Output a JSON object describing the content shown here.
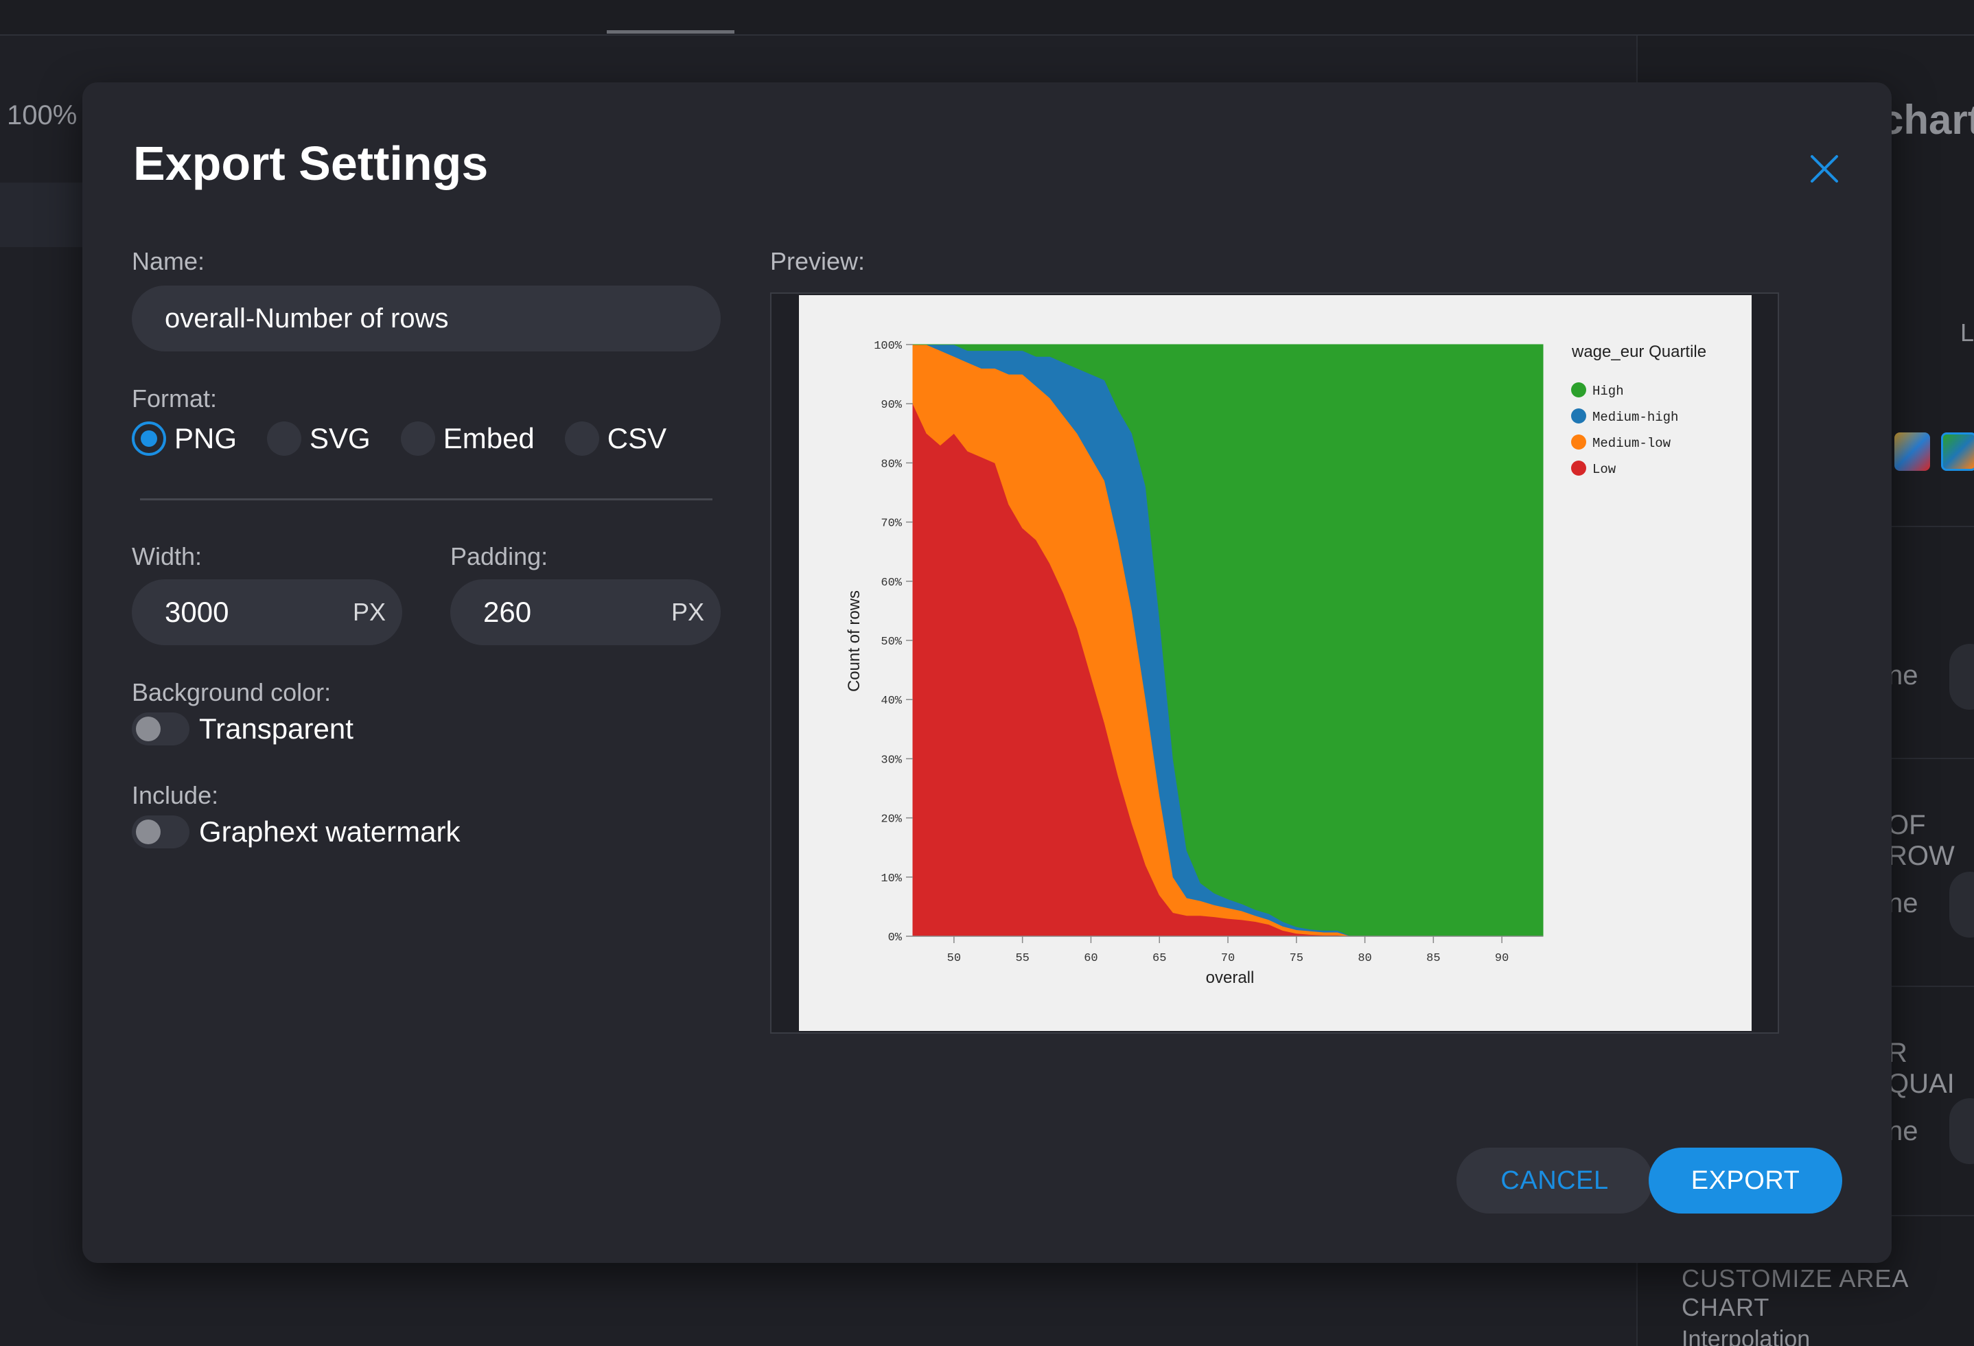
{
  "background": {
    "zoom_label": "100%",
    "right_title": "chart",
    "right_l": "L",
    "right_row_labels": [
      "ne",
      "OF ROW",
      "ne",
      "R QUAI",
      "ne"
    ],
    "customize_label": "CUSTOMIZE AREA CHART",
    "interpolation_label": "Interpolation"
  },
  "modal": {
    "title": "Export Settings",
    "close_icon": "close-icon",
    "name_label": "Name:",
    "name_value": "overall-Number of rows",
    "format_label": "Format:",
    "formats": [
      {
        "label": "PNG",
        "selected": true
      },
      {
        "label": "SVG",
        "selected": false
      },
      {
        "label": "Embed",
        "selected": false
      },
      {
        "label": "CSV",
        "selected": false
      }
    ],
    "width_label": "Width:",
    "width_value": "3000",
    "width_unit": "PX",
    "padding_label": "Padding:",
    "padding_value": "260",
    "padding_unit": "PX",
    "background_label": "Background color:",
    "transparent_label": "Transparent",
    "transparent_on": false,
    "include_label": "Include:",
    "watermark_label": "Graphext watermark",
    "watermark_on": false,
    "preview_label": "Preview:",
    "cancel_label": "CANCEL",
    "export_label": "EXPORT"
  },
  "colors": {
    "accent": "#1a8fe3",
    "high": "#2ca02c",
    "medium_high": "#1f77b4",
    "medium_low": "#ff7f0e",
    "low": "#d62728"
  },
  "chart_data": {
    "type": "area",
    "stacked": "normalized",
    "xlabel": "overall",
    "ylabel": "Count of rows",
    "legend_title": "wage_eur Quartile",
    "legend_position": "right",
    "x_ticks": [
      50,
      55,
      60,
      65,
      70,
      75,
      80,
      85,
      90
    ],
    "y_ticks": [
      "0%",
      "10%",
      "20%",
      "30%",
      "40%",
      "50%",
      "60%",
      "70%",
      "80%",
      "90%",
      "100%"
    ],
    "xlim": [
      47,
      93
    ],
    "ylim": [
      0,
      1
    ],
    "x": [
      47,
      48,
      49,
      50,
      51,
      52,
      53,
      54,
      55,
      56,
      57,
      58,
      59,
      60,
      61,
      62,
      63,
      64,
      65,
      66,
      67,
      68,
      69,
      70,
      71,
      72,
      73,
      74,
      75,
      76,
      77,
      78,
      79,
      80,
      81,
      82,
      83,
      84,
      85,
      93
    ],
    "series": [
      {
        "name": "Low",
        "values": [
          0.9,
          0.85,
          0.83,
          0.85,
          0.82,
          0.81,
          0.8,
          0.73,
          0.69,
          0.67,
          0.63,
          0.58,
          0.52,
          0.44,
          0.36,
          0.27,
          0.19,
          0.12,
          0.07,
          0.04,
          0.035,
          0.035,
          0.033,
          0.03,
          0.028,
          0.025,
          0.02,
          0.01,
          0.005,
          0.003,
          0.002,
          0.002,
          0.0,
          0.0,
          0.0,
          0.0,
          0.0,
          0.0,
          0.0,
          0.0
        ]
      },
      {
        "name": "Medium-low",
        "values": [
          0.1,
          0.15,
          0.16,
          0.13,
          0.15,
          0.15,
          0.16,
          0.22,
          0.26,
          0.26,
          0.28,
          0.3,
          0.33,
          0.37,
          0.41,
          0.4,
          0.36,
          0.28,
          0.17,
          0.06,
          0.03,
          0.025,
          0.02,
          0.018,
          0.015,
          0.01,
          0.008,
          0.007,
          0.006,
          0.006,
          0.005,
          0.005,
          0.0,
          0.0,
          0.0,
          0.0,
          0.0,
          0.0,
          0.0,
          0.0
        ]
      },
      {
        "name": "Medium-high",
        "values": [
          0.0,
          0.0,
          0.01,
          0.02,
          0.02,
          0.03,
          0.03,
          0.04,
          0.04,
          0.05,
          0.07,
          0.09,
          0.11,
          0.14,
          0.17,
          0.22,
          0.3,
          0.36,
          0.3,
          0.2,
          0.08,
          0.03,
          0.02,
          0.015,
          0.012,
          0.01,
          0.01,
          0.008,
          0.005,
          0.003,
          0.003,
          0.003,
          0.0,
          0.0,
          0.0,
          0.0,
          0.0,
          0.0,
          0.0,
          0.0
        ]
      },
      {
        "name": "High",
        "values": [
          0.0,
          0.0,
          0.0,
          0.0,
          0.01,
          0.01,
          0.01,
          0.01,
          0.01,
          0.02,
          0.02,
          0.03,
          0.04,
          0.05,
          0.06,
          0.11,
          0.15,
          0.24,
          0.46,
          0.7,
          0.855,
          0.91,
          0.927,
          0.937,
          0.945,
          0.955,
          0.962,
          0.975,
          0.984,
          0.988,
          0.99,
          0.99,
          1.0,
          1.0,
          1.0,
          1.0,
          1.0,
          1.0,
          1.0,
          1.0
        ]
      }
    ]
  }
}
